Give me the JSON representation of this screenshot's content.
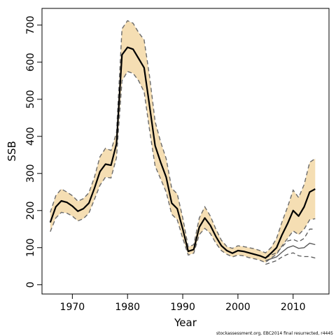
{
  "chart_data": {
    "type": "line",
    "xlabel": "Year",
    "ylabel": "SSB",
    "xlim": [
      1964.5,
      2016.5
    ],
    "ylim": [
      -25,
      745
    ],
    "x_ticks": [
      1970,
      1980,
      1990,
      2000,
      2010
    ],
    "y_ticks": [
      0,
      100,
      200,
      300,
      400,
      500,
      600,
      700
    ],
    "grid": false,
    "legend": "none",
    "credit": "stockassessment.org, EBC2014 final resurrected, r4445",
    "colors": {
      "band": "#f5deb3",
      "estimate": "#000000",
      "interval_lines": "#6b6b6b",
      "retro_lines": "#5a5a5a"
    },
    "series": [
      {
        "role": "estimate",
        "x": [
          1966,
          1967,
          1968,
          1969,
          1970,
          1971,
          1972,
          1973,
          1974,
          1975,
          1976,
          1977,
          1978,
          1979,
          1980,
          1981,
          1982,
          1983,
          1984,
          1985,
          1986,
          1987,
          1988,
          1989,
          1990,
          1991,
          1992,
          1993,
          1994,
          1995,
          1996,
          1997,
          1998,
          1999,
          2000,
          2001,
          2002,
          2003,
          2004,
          2005,
          2006,
          2007,
          2008,
          2009,
          2010,
          2011,
          2012,
          2013,
          2014
        ],
        "values": [
          168,
          210,
          226,
          222,
          212,
          198,
          205,
          220,
          260,
          305,
          325,
          322,
          380,
          620,
          640,
          635,
          610,
          585,
          480,
          375,
          330,
          290,
          220,
          205,
          150,
          90,
          95,
          155,
          180,
          160,
          130,
          105,
          92,
          85,
          92,
          90,
          86,
          82,
          78,
          72,
          85,
          100,
          135,
          165,
          200,
          185,
          210,
          250,
          258
        ]
      },
      {
        "role": "upper",
        "x": [
          1966,
          1967,
          1968,
          1969,
          1970,
          1971,
          1972,
          1973,
          1974,
          1975,
          1976,
          1977,
          1978,
          1979,
          1980,
          1981,
          1982,
          1983,
          1984,
          1985,
          1986,
          1987,
          1988,
          1989,
          1990,
          1991,
          1992,
          1993,
          1994,
          1995,
          1996,
          1997,
          1998,
          1999,
          2000,
          2001,
          2002,
          2003,
          2004,
          2005,
          2006,
          2007,
          2008,
          2009,
          2010,
          2011,
          2012,
          2013,
          2014
        ],
        "values": [
          195,
          240,
          258,
          250,
          240,
          225,
          232,
          248,
          290,
          345,
          368,
          362,
          410,
          690,
          712,
          705,
          680,
          660,
          560,
          440,
          385,
          340,
          260,
          245,
          180,
          102,
          108,
          180,
          210,
          185,
          150,
          120,
          103,
          98,
          105,
          103,
          100,
          97,
          92,
          86,
          100,
          125,
          170,
          210,
          255,
          235,
          270,
          330,
          340
        ]
      },
      {
        "role": "lower",
        "x": [
          1966,
          1967,
          1968,
          1969,
          1970,
          1971,
          1972,
          1973,
          1974,
          1975,
          1976,
          1977,
          1978,
          1979,
          1980,
          1981,
          1982,
          1983,
          1984,
          1985,
          1986,
          1987,
          1988,
          1989,
          1990,
          1991,
          1992,
          1993,
          1994,
          1995,
          1996,
          1997,
          1998,
          1999,
          2000,
          2001,
          2002,
          2003,
          2004,
          2005,
          2006,
          2007,
          2008,
          2009,
          2010,
          2011,
          2012,
          2013,
          2014
        ],
        "values": [
          143,
          180,
          195,
          193,
          185,
          172,
          178,
          193,
          230,
          268,
          290,
          288,
          342,
          550,
          575,
          570,
          550,
          520,
          415,
          320,
          285,
          250,
          190,
          175,
          125,
          80,
          85,
          135,
          152,
          138,
          112,
          92,
          82,
          75,
          80,
          78,
          73,
          70,
          66,
          60,
          72,
          82,
          105,
          125,
          145,
          135,
          150,
          175,
          178
        ]
      },
      {
        "role": "retrospective",
        "x": [
          2005,
          2006,
          2007,
          2008,
          2009,
          2010,
          2011,
          2012,
          2013,
          2014
        ],
        "values": [
          65,
          70,
          75,
          88,
          100,
          105,
          98,
          100,
          112,
          108
        ]
      },
      {
        "role": "retrospective-upper",
        "x": [
          2005,
          2006,
          2007,
          2008,
          2009,
          2010,
          2011,
          2012,
          2013,
          2014
        ],
        "values": [
          72,
          80,
          86,
          102,
          118,
          122,
          116,
          125,
          150,
          150
        ]
      },
      {
        "role": "retrospective-lower",
        "x": [
          2005,
          2006,
          2007,
          2008,
          2009,
          2010,
          2011,
          2012,
          2013,
          2014
        ],
        "values": [
          55,
          60,
          65,
          75,
          82,
          86,
          78,
          76,
          76,
          72
        ]
      }
    ]
  }
}
